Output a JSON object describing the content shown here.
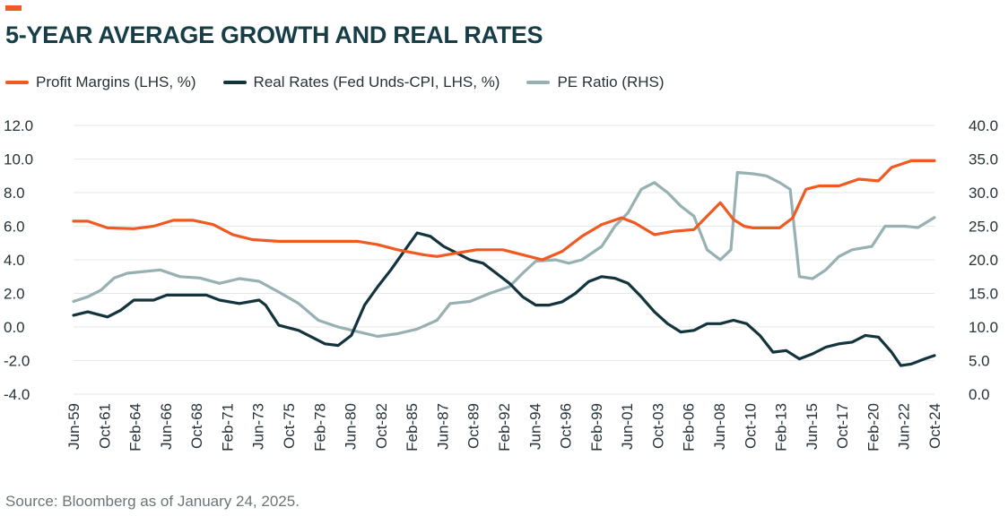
{
  "title": "5-YEAR AVERAGE GROWTH AND REAL RATES",
  "source": "Source: Bloomberg as of January 24, 2025.",
  "colors": {
    "accent": "#f05a22",
    "profit": "#f05a22",
    "real": "#13333d",
    "pe": "#97b0b1",
    "grid": "#e6e9ea"
  },
  "chart_data": {
    "type": "line",
    "title": "5-YEAR AVERAGE GROWTH AND REAL RATES",
    "left_axis": {
      "ylim": [
        -4,
        12
      ],
      "ticks": [
        "12.0",
        "10.0",
        "8.0",
        "6.0",
        "4.0",
        "2.0",
        "0.0",
        "-2.0",
        "-4.0"
      ]
    },
    "right_axis": {
      "ylim": [
        0,
        40
      ],
      "ticks": [
        "40.0",
        "35.0",
        "30.0",
        "25.0",
        "20.0",
        "15.0",
        "10.0",
        "5.0",
        "0.0"
      ]
    },
    "x_range": [
      1959.42,
      2024.75
    ],
    "x_ticks": [
      "Jun-59",
      "Oct-61",
      "Feb-64",
      "Jun-66",
      "Oct-68",
      "Feb-71",
      "Jun-73",
      "Oct-75",
      "Feb-78",
      "Jun-80",
      "Oct-82",
      "Feb-85",
      "Jun-87",
      "Oct-89",
      "Feb-92",
      "Jun-94",
      "Oct-96",
      "Feb-99",
      "Jun-01",
      "Oct-03",
      "Feb-06",
      "Jun-08",
      "Oct-10",
      "Feb-13",
      "Jun-15",
      "Oct-17",
      "Feb-20",
      "Jun-22",
      "Oct-24"
    ],
    "grid": true,
    "legend_position": "top-left",
    "series": [
      {
        "name": "Profit Margins (LHS, %)",
        "axis": "left",
        "color": "#f05a22",
        "points": [
          [
            1959.42,
            6.3
          ],
          [
            1960.5,
            6.3
          ],
          [
            1962,
            5.9
          ],
          [
            1964,
            5.85
          ],
          [
            1965.5,
            6
          ],
          [
            1967,
            6.35
          ],
          [
            1968.5,
            6.35
          ],
          [
            1970,
            6.1
          ],
          [
            1971.5,
            5.5
          ],
          [
            1973,
            5.2
          ],
          [
            1975,
            5.1
          ],
          [
            1977,
            5.1
          ],
          [
            1979,
            5.1
          ],
          [
            1981,
            5.1
          ],
          [
            1982.5,
            4.9
          ],
          [
            1984,
            4.6
          ],
          [
            1986,
            4.3
          ],
          [
            1987,
            4.2
          ],
          [
            1988.5,
            4.4
          ],
          [
            1990,
            4.6
          ],
          [
            1992,
            4.6
          ],
          [
            1993.5,
            4.3
          ],
          [
            1995,
            4.0
          ],
          [
            1996.5,
            4.5
          ],
          [
            1998,
            5.4
          ],
          [
            1999.5,
            6.1
          ],
          [
            2001,
            6.5
          ],
          [
            2002,
            6.2
          ],
          [
            2003.5,
            5.5
          ],
          [
            2005,
            5.7
          ],
          [
            2006.5,
            5.8
          ],
          [
            2007.5,
            6.6
          ],
          [
            2008.5,
            7.4
          ],
          [
            2009.5,
            6.4
          ],
          [
            2010.3,
            6.0
          ],
          [
            2011,
            5.9
          ],
          [
            2013,
            5.9
          ],
          [
            2014,
            6.5
          ],
          [
            2015,
            8.2
          ],
          [
            2016,
            8.4
          ],
          [
            2017.5,
            8.4
          ],
          [
            2019,
            8.8
          ],
          [
            2020.5,
            8.7
          ],
          [
            2021.5,
            9.5
          ],
          [
            2023,
            9.9
          ],
          [
            2024.75,
            9.9
          ]
        ]
      },
      {
        "name": "Real Rates (Fed Unds-CPI, LHS, %)",
        "axis": "left",
        "color": "#13333d",
        "points": [
          [
            1959.42,
            0.7
          ],
          [
            1960.5,
            0.9
          ],
          [
            1962,
            0.6
          ],
          [
            1963,
            1.0
          ],
          [
            1964,
            1.6
          ],
          [
            1965.5,
            1.6
          ],
          [
            1966.5,
            1.9
          ],
          [
            1968,
            1.9
          ],
          [
            1969.5,
            1.9
          ],
          [
            1970.5,
            1.6
          ],
          [
            1972,
            1.4
          ],
          [
            1973.5,
            1.6
          ],
          [
            1974,
            1.3
          ],
          [
            1975,
            0.1
          ],
          [
            1976.5,
            -0.2
          ],
          [
            1977.5,
            -0.6
          ],
          [
            1978.5,
            -1.0
          ],
          [
            1979.5,
            -1.1
          ],
          [
            1980.5,
            -0.5
          ],
          [
            1981.5,
            1.3
          ],
          [
            1982.5,
            2.4
          ],
          [
            1983.5,
            3.4
          ],
          [
            1984.5,
            4.5
          ],
          [
            1985.5,
            5.6
          ],
          [
            1986.5,
            5.4
          ],
          [
            1987.5,
            4.8
          ],
          [
            1988.5,
            4.4
          ],
          [
            1989.5,
            4.0
          ],
          [
            1990.5,
            3.8
          ],
          [
            1991.5,
            3.2
          ],
          [
            1992.5,
            2.6
          ],
          [
            1993.5,
            1.8
          ],
          [
            1994.5,
            1.3
          ],
          [
            1995.5,
            1.3
          ],
          [
            1996.5,
            1.5
          ],
          [
            1997.5,
            2.0
          ],
          [
            1998.5,
            2.7
          ],
          [
            1999.5,
            3.0
          ],
          [
            2000.5,
            2.9
          ],
          [
            2001.5,
            2.6
          ],
          [
            2002.5,
            1.8
          ],
          [
            2003.5,
            0.9
          ],
          [
            2004.5,
            0.2
          ],
          [
            2005.5,
            -0.3
          ],
          [
            2006.5,
            -0.2
          ],
          [
            2007.5,
            0.2
          ],
          [
            2008.5,
            0.2
          ],
          [
            2009.5,
            0.4
          ],
          [
            2010.5,
            0.2
          ],
          [
            2011.5,
            -0.5
          ],
          [
            2012.5,
            -1.5
          ],
          [
            2013.5,
            -1.4
          ],
          [
            2014.5,
            -1.9
          ],
          [
            2015.5,
            -1.6
          ],
          [
            2016.5,
            -1.2
          ],
          [
            2017.5,
            -1.0
          ],
          [
            2018.5,
            -0.9
          ],
          [
            2019.5,
            -0.5
          ],
          [
            2020.5,
            -0.6
          ],
          [
            2021.5,
            -1.5
          ],
          [
            2022.2,
            -2.3
          ],
          [
            2023,
            -2.2
          ],
          [
            2024,
            -1.9
          ],
          [
            2024.75,
            -1.7
          ]
        ]
      },
      {
        "name": "PE Ratio (RHS)",
        "axis": "right",
        "color": "#97b0b1",
        "points": [
          [
            1959.42,
            13.8
          ],
          [
            1960.5,
            14.5
          ],
          [
            1961.5,
            15.5
          ],
          [
            1962.5,
            17.3
          ],
          [
            1963.5,
            18.0
          ],
          [
            1964.5,
            18.2
          ],
          [
            1966,
            18.5
          ],
          [
            1967.5,
            17.5
          ],
          [
            1969,
            17.3
          ],
          [
            1970.5,
            16.5
          ],
          [
            1972,
            17.2
          ],
          [
            1973.5,
            16.8
          ],
          [
            1975,
            15.2
          ],
          [
            1976.5,
            13.5
          ],
          [
            1978,
            11.0
          ],
          [
            1979.5,
            10.0
          ],
          [
            1981,
            9.3
          ],
          [
            1982.5,
            8.6
          ],
          [
            1984,
            9.0
          ],
          [
            1985.5,
            9.7
          ],
          [
            1987,
            11.0
          ],
          [
            1988,
            13.5
          ],
          [
            1989.5,
            13.8
          ],
          [
            1991,
            15.0
          ],
          [
            1992.5,
            16.0
          ],
          [
            1993.5,
            18.0
          ],
          [
            1994.5,
            19.8
          ],
          [
            1996,
            20.0
          ],
          [
            1997,
            19.5
          ],
          [
            1998,
            20.0
          ],
          [
            1999.5,
            22.0
          ],
          [
            2000.5,
            25.0
          ],
          [
            2001.5,
            27.0
          ],
          [
            2002.5,
            30.5
          ],
          [
            2003.5,
            31.5
          ],
          [
            2004.5,
            30.0
          ],
          [
            2005.5,
            28.0
          ],
          [
            2006.5,
            26.5
          ],
          [
            2007.5,
            21.5
          ],
          [
            2008.5,
            20.0
          ],
          [
            2009.3,
            21.5
          ],
          [
            2009.8,
            33.0
          ],
          [
            2011,
            32.8
          ],
          [
            2012,
            32.5
          ],
          [
            2013,
            31.5
          ],
          [
            2013.8,
            30.5
          ],
          [
            2014.5,
            17.5
          ],
          [
            2015.5,
            17.2
          ],
          [
            2016.5,
            18.5
          ],
          [
            2017.5,
            20.5
          ],
          [
            2018.5,
            21.5
          ],
          [
            2020,
            22.0
          ],
          [
            2021,
            25.0
          ],
          [
            2022.5,
            25.0
          ],
          [
            2023.5,
            24.8
          ],
          [
            2024.75,
            26.3
          ]
        ]
      }
    ]
  }
}
